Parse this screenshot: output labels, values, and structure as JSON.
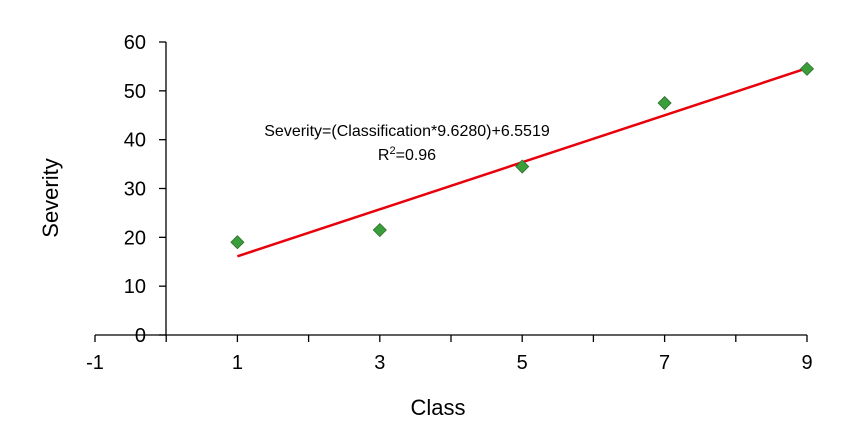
{
  "chart_data": {
    "type": "scatter",
    "xlabel": "Class",
    "ylabel": "Severity",
    "xlim": [
      -1,
      9
    ],
    "ylim": [
      0,
      60
    ],
    "x_ticks": [
      -1,
      1,
      3,
      5,
      7,
      9
    ],
    "y_ticks": [
      0,
      10,
      20,
      30,
      40,
      50,
      60
    ],
    "x_tick_labels": [
      "-1",
      "1",
      "3",
      "5",
      "7",
      "9"
    ],
    "y_tick_labels": [
      "0",
      "10",
      "20",
      "30",
      "40",
      "50",
      "60"
    ],
    "grid": false,
    "legend": "none",
    "series": [
      {
        "marker": "diamond",
        "color": "#3a9e3a",
        "x": [
          1,
          3,
          5,
          7,
          9
        ],
        "y": [
          19,
          21.5,
          34.5,
          47.5,
          54.5
        ]
      }
    ],
    "trendline": {
      "color": "#e8000b",
      "slope": 4.814,
      "intercept": 11.3,
      "x_range": [
        1,
        9
      ]
    },
    "annotation": {
      "equation": "Severity=(Classification*9.6280)+6.5519",
      "r_squared_prefix": "R",
      "r_squared_sup": "2",
      "r_squared_value": "=0.96"
    }
  }
}
